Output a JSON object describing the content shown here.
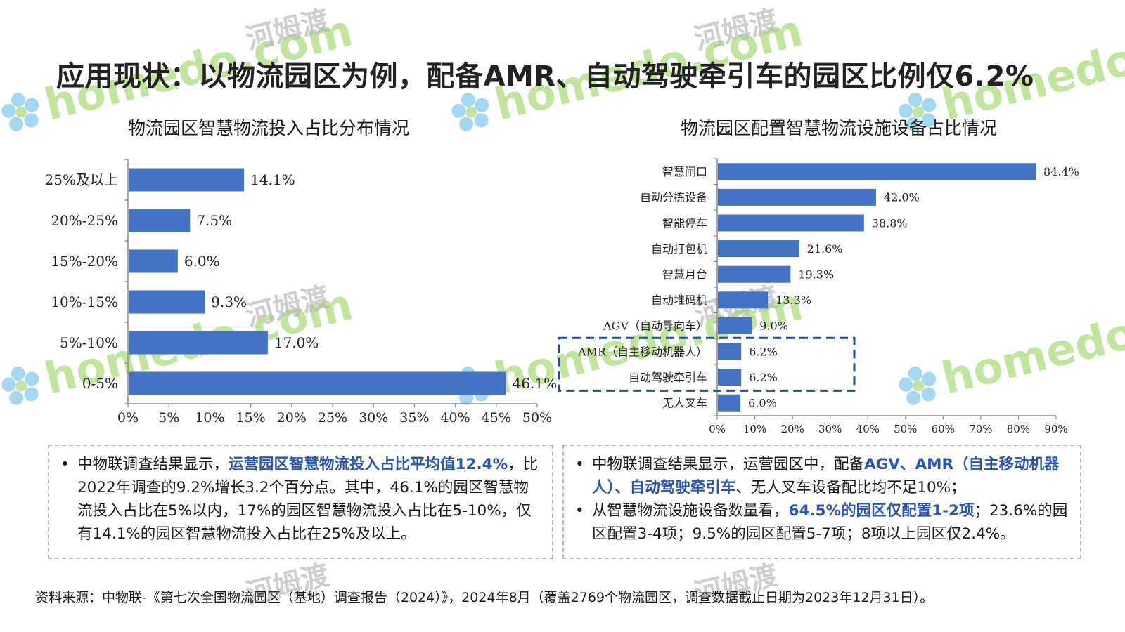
{
  "title": "应用现状：以物流园区为例，配备AMR、自动驾驶牵引车的园区比例仅6.2%",
  "colors": {
    "bar": "#4472c4",
    "highlight_text": "#2a56b3",
    "dash_box": "#1f4e9c"
  },
  "chart_data": [
    {
      "type": "bar",
      "orientation": "horizontal",
      "title": "物流园区智慧物流投入占比分布情况",
      "categories": [
        "25%及以上",
        "20%-25%",
        "15%-20%",
        "10%-15%",
        "5%-10%",
        "0-5%"
      ],
      "values": [
        14.1,
        7.5,
        6.0,
        9.3,
        17.0,
        46.1
      ],
      "value_labels": [
        "14.1%",
        "7.5%",
        "6.0%",
        "9.3%",
        "17.0%",
        "46.1%"
      ],
      "xlim": [
        0,
        50
      ],
      "xticks": [
        "0%",
        "5%",
        "10%",
        "15%",
        "20%",
        "25%",
        "30%",
        "35%",
        "40%",
        "45%",
        "50%"
      ],
      "grid": false
    },
    {
      "type": "bar",
      "orientation": "horizontal",
      "title": "物流园区配置智慧物流设施设备占比情况",
      "categories": [
        "智慧闸口",
        "自动分拣设备",
        "智能停车",
        "自动打包机",
        "智慧月台",
        "自动堆码机",
        "AGV（自动导向车）",
        "AMR（自主移动机器人）",
        "自动驾驶牵引车",
        "无人叉车"
      ],
      "values": [
        84.4,
        42.0,
        38.8,
        21.6,
        19.3,
        13.3,
        9.0,
        6.2,
        6.2,
        6.0
      ],
      "value_labels": [
        "84.4%",
        "42.0%",
        "38.8%",
        "21.6%",
        "19.3%",
        "13.3%",
        "9.0%",
        "6.2%",
        "6.2%",
        "6.0%"
      ],
      "xlim": [
        0,
        90
      ],
      "xticks": [
        "0%",
        "10%",
        "20%",
        "30%",
        "40%",
        "50%",
        "60%",
        "70%",
        "80%",
        "90%"
      ],
      "highlighted_categories": [
        "AMR（自主移动机器人）",
        "自动驾驶牵引车"
      ],
      "grid": false
    }
  ],
  "notes": {
    "left": [
      {
        "segments": [
          {
            "text": "中物联调查结果显示，",
            "bold": false
          },
          {
            "text": "运营园区智慧物流投入占比平均值12.4%",
            "bold": true
          },
          {
            "text": "，比2022年调查的9.2%增长3.2个百分点。其中，46.1%的园区智慧物流投入占比在5%以内，17%的园区智慧物流投入占比在5-10%，仅有14.1%的园区智慧物流投入占比在25%及以上。",
            "bold": false
          }
        ]
      }
    ],
    "right": [
      {
        "segments": [
          {
            "text": "中物联调查结果显示，运营园区中，配备",
            "bold": false
          },
          {
            "text": "AGV、AMR（自主移动机器人）、自动驾驶牵引车",
            "bold": true
          },
          {
            "text": "、无人叉车设备配比均不足10%；",
            "bold": false
          }
        ]
      },
      {
        "segments": [
          {
            "text": "从智慧物流设施设备数量看，",
            "bold": false
          },
          {
            "text": "64.5%的园区仅配置1-2项",
            "bold": true
          },
          {
            "text": "；23.6%的园区配置3-4项；9.5%的园区配置5-7项；8项以上园区仅2.4%。",
            "bold": false
          }
        ]
      }
    ]
  },
  "source": "资料来源：中物联-《第七次全国物流园区（基地）调查报告（2024）》，2024年8月（覆盖2769个物流园区，调查数据截止日期为2023年12月31日）。",
  "watermark": {
    "text": "homedo.com",
    "cn": "河姆渡"
  }
}
